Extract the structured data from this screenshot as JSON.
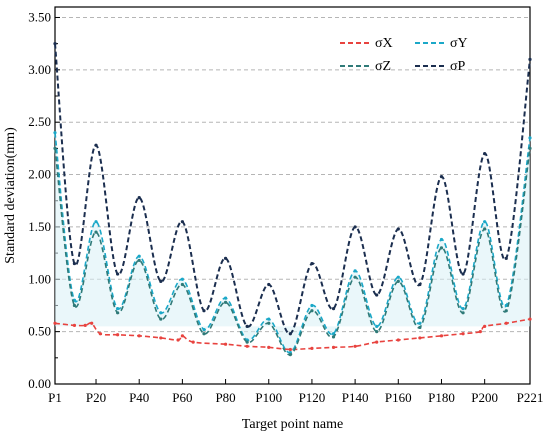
{
  "chart_data": {
    "type": "line",
    "xlabel": "Target point name",
    "ylabel": "Standard deviation(mm)",
    "x_range": [
      1,
      221
    ],
    "ylim": [
      0,
      3.6
    ],
    "grid": "horizontal-dashed",
    "legend_position": "top-right",
    "x_ticks": [
      {
        "x": 1,
        "label": "P1"
      },
      {
        "x": 20,
        "label": "P20"
      },
      {
        "x": 40,
        "label": "P40"
      },
      {
        "x": 60,
        "label": "P60"
      },
      {
        "x": 80,
        "label": "P80"
      },
      {
        "x": 100,
        "label": "P100"
      },
      {
        "x": 120,
        "label": "P120"
      },
      {
        "x": 140,
        "label": "P140"
      },
      {
        "x": 160,
        "label": "P160"
      },
      {
        "x": 180,
        "label": "P180"
      },
      {
        "x": 200,
        "label": "P200"
      },
      {
        "x": 221,
        "label": "P221"
      }
    ],
    "y_ticks": [
      {
        "y": 0.0,
        "label": "0.00"
      },
      {
        "y": 0.5,
        "label": "0.50"
      },
      {
        "y": 1.0,
        "label": "1.00"
      },
      {
        "y": 1.5,
        "label": "1.50"
      },
      {
        "y": 2.0,
        "label": "2.00"
      },
      {
        "y": 2.5,
        "label": "2.50"
      },
      {
        "y": 3.0,
        "label": "3.00"
      },
      {
        "y": 3.5,
        "label": "3.50"
      }
    ],
    "series": [
      {
        "name": "σX",
        "color": "#e8433f",
        "x": [
          1,
          10,
          15,
          18,
          22,
          30,
          40,
          50,
          58,
          60,
          65,
          80,
          90,
          100,
          110,
          120,
          130,
          140,
          150,
          160,
          170,
          180,
          190,
          198,
          200,
          210,
          221
        ],
        "y": [
          0.58,
          0.56,
          0.56,
          0.58,
          0.48,
          0.47,
          0.46,
          0.44,
          0.42,
          0.46,
          0.4,
          0.38,
          0.36,
          0.35,
          0.33,
          0.34,
          0.35,
          0.36,
          0.4,
          0.42,
          0.44,
          0.46,
          0.48,
          0.5,
          0.55,
          0.58,
          0.62
        ]
      },
      {
        "name": "σY",
        "color": "#1ba8c8",
        "x": [
          1,
          10,
          20,
          30,
          40,
          50,
          60,
          70,
          80,
          90,
          100,
          110,
          120,
          130,
          140,
          150,
          160,
          170,
          180,
          190,
          200,
          210,
          221
        ],
        "y": [
          2.4,
          0.8,
          1.55,
          0.72,
          1.22,
          0.68,
          1.0,
          0.52,
          0.82,
          0.42,
          0.62,
          0.3,
          0.75,
          0.48,
          1.08,
          0.55,
          1.02,
          0.58,
          1.38,
          0.72,
          1.55,
          0.75,
          2.35
        ]
      },
      {
        "name": "σZ",
        "color": "#2f7a78",
        "x": [
          1,
          10,
          20,
          30,
          40,
          50,
          60,
          70,
          80,
          90,
          100,
          110,
          120,
          130,
          140,
          150,
          160,
          170,
          180,
          190,
          200,
          210,
          221
        ],
        "y": [
          2.25,
          0.75,
          1.45,
          0.68,
          1.18,
          0.62,
          0.95,
          0.48,
          0.78,
          0.4,
          0.58,
          0.28,
          0.7,
          0.45,
          1.02,
          0.5,
          0.98,
          0.54,
          1.3,
          0.68,
          1.48,
          0.7,
          2.25
        ]
      },
      {
        "name": "σP",
        "color": "#1b2e4f",
        "x": [
          1,
          10,
          20,
          30,
          40,
          50,
          60,
          70,
          80,
          90,
          100,
          110,
          120,
          130,
          140,
          150,
          160,
          170,
          180,
          190,
          200,
          210,
          221
        ],
        "y": [
          3.25,
          1.15,
          2.28,
          1.05,
          1.78,
          0.98,
          1.55,
          0.7,
          1.2,
          0.55,
          0.95,
          0.48,
          1.15,
          0.72,
          1.5,
          0.85,
          1.48,
          0.95,
          1.98,
          1.05,
          2.2,
          1.2,
          3.1
        ]
      }
    ]
  }
}
